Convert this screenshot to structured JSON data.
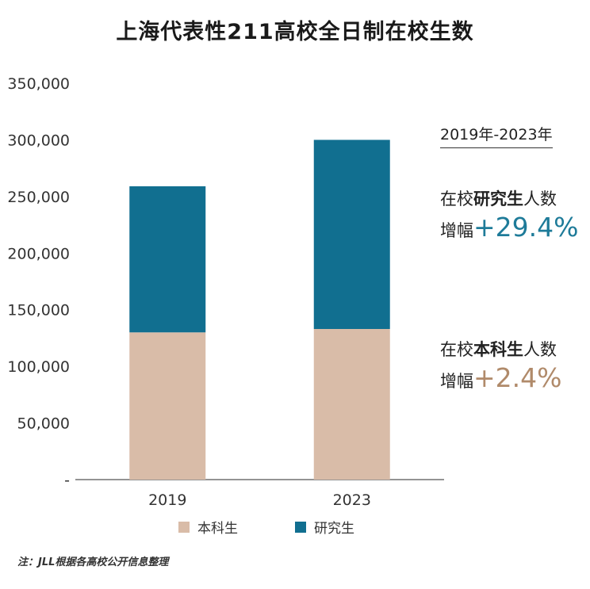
{
  "title": "上海代表性211高校全日制在校生数",
  "chart_data": {
    "type": "bar",
    "stacked": true,
    "categories": [
      "2019",
      "2023"
    ],
    "series": [
      {
        "name": "本科生",
        "color": "#d9bca8",
        "values": [
          130000,
          133000
        ]
      },
      {
        "name": "研究生",
        "color": "#116f90",
        "values": [
          129000,
          167000
        ]
      }
    ],
    "ylim": [
      0,
      350000
    ],
    "yticks": [
      "-",
      "50,000",
      "100,000",
      "150,000",
      "200,000",
      "250,000",
      "300,000",
      "350,000"
    ],
    "ytick_values": [
      0,
      50000,
      100000,
      150000,
      200000,
      250000,
      300000,
      350000
    ],
    "grid": false,
    "legend": "bottom"
  },
  "side_panel": {
    "period": "2019年-2023年",
    "grad": {
      "prefix": "在校",
      "bold": "研究生",
      "suffix": "人数",
      "label": "增幅",
      "growth": "+29.4%",
      "color": "#1e7b99"
    },
    "ug": {
      "prefix": "在校",
      "bold": "本科生",
      "suffix": "人数",
      "label": "增幅",
      "growth": "+2.4%",
      "color": "#b08a6a"
    }
  },
  "note": "注：JLL根据各高校公开信息整理"
}
